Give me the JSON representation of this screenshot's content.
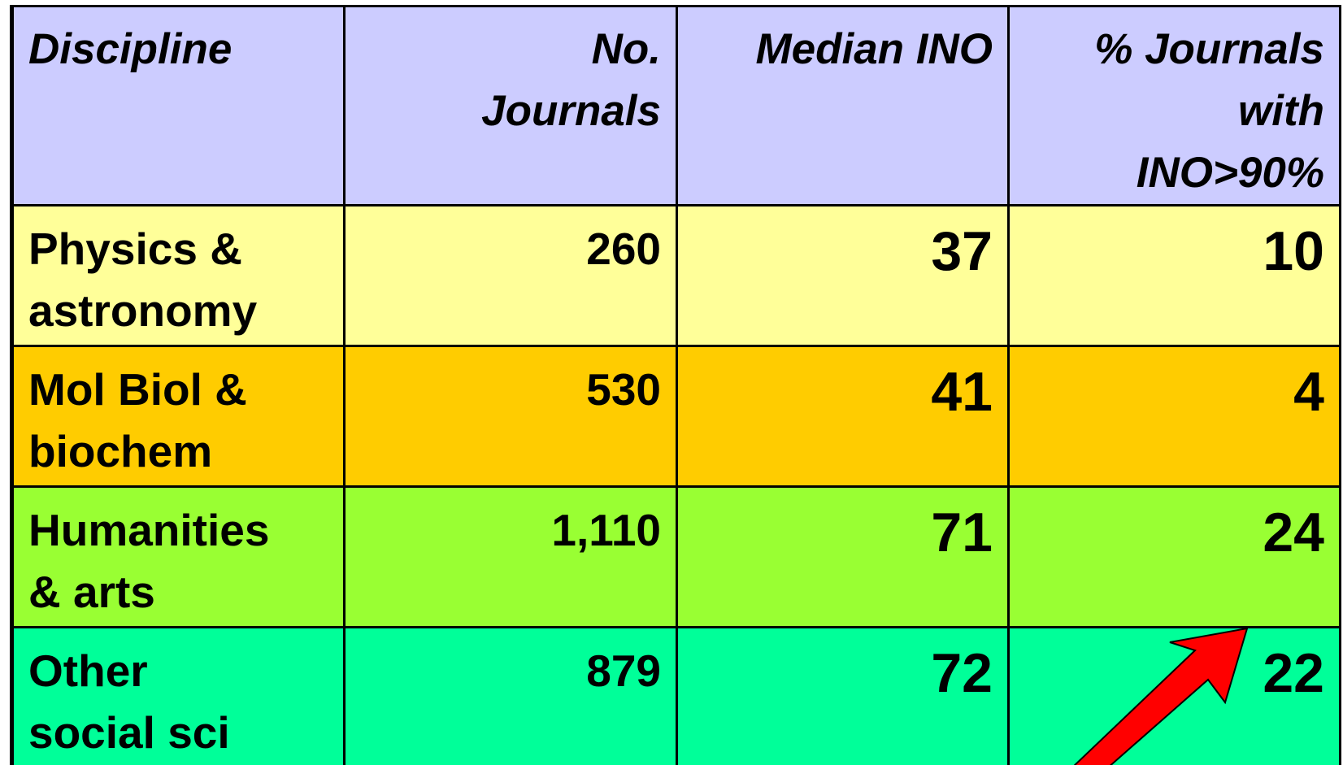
{
  "table": {
    "header": [
      [
        "Discipline"
      ],
      [
        "No.",
        "Journals"
      ],
      [
        "Median INO"
      ],
      [
        "% Journals",
        "with",
        "INO>90%"
      ]
    ],
    "rows": [
      [
        [
          "Physics &",
          "astronomy"
        ],
        "260",
        "37",
        "10"
      ],
      [
        [
          "Mol Biol &",
          "biochem"
        ],
        "530",
        "41",
        "4"
      ],
      [
        [
          "Humanities",
          "& arts"
        ],
        "1,110",
        "71",
        "24"
      ],
      [
        [
          "Other",
          "social sci"
        ],
        "879",
        "72",
        "22"
      ]
    ]
  }
}
